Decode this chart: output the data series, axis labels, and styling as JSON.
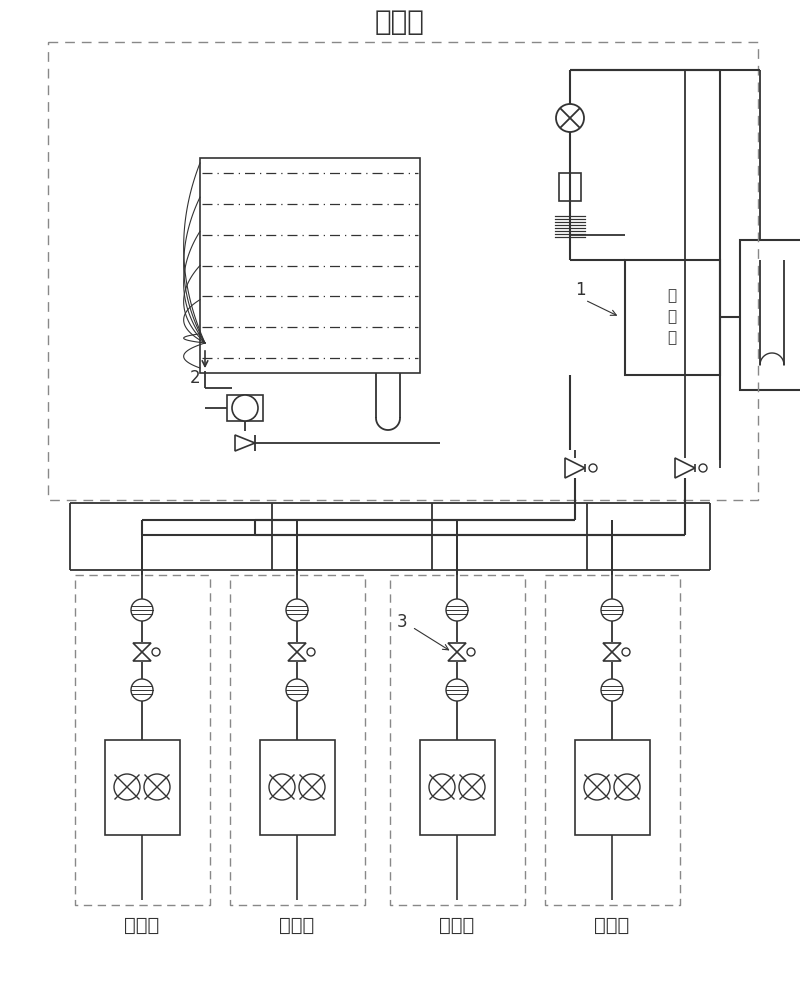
{
  "title": "室外机",
  "indoor_label": "室内机",
  "compressor_label": "压\n缩\n机",
  "label_1": "1",
  "label_2": "2",
  "label_3": "3",
  "bg_color": "#ffffff",
  "line_color": "#333333",
  "dashed_color": "#888888",
  "font_size_title": 20,
  "font_size_label": 14,
  "font_size_number": 12
}
